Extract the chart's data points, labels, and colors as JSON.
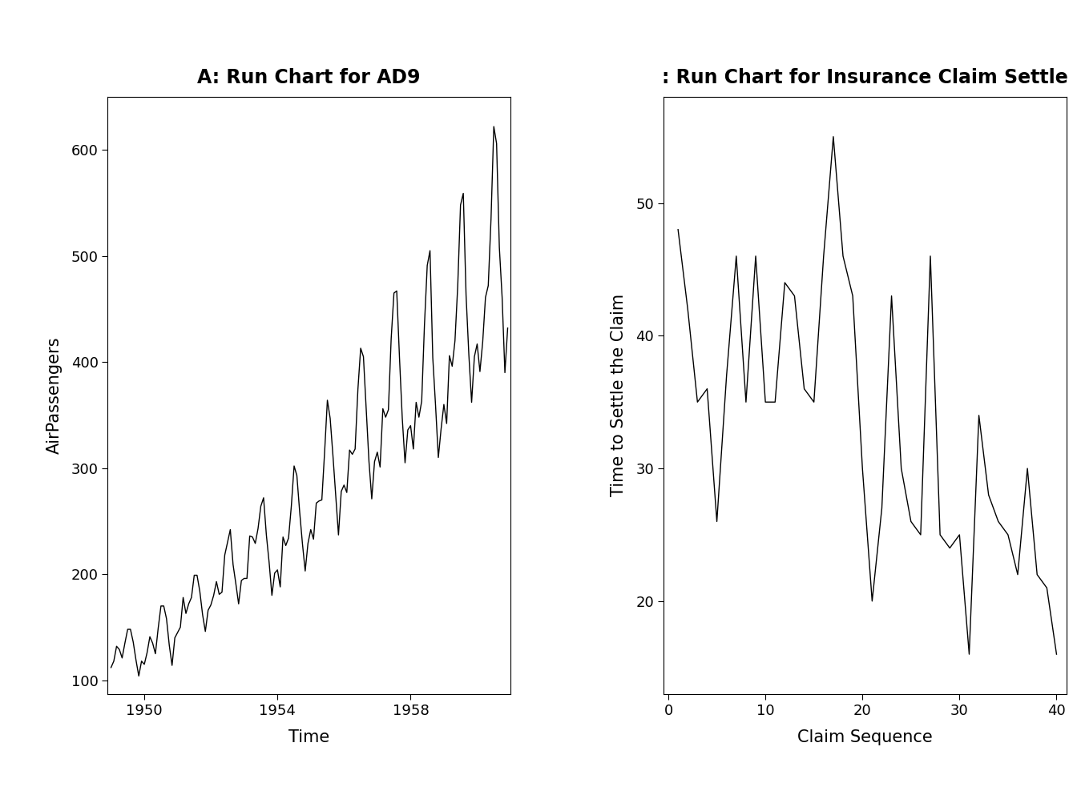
{
  "title_left": "A: Run Chart for AD9",
  "title_right": ": Run Chart for Insurance Claim Settle",
  "left": {
    "xlabel": "Time",
    "ylabel": "AirPassengers",
    "xlim": [
      1948.9,
      1961.0
    ],
    "ylim": [
      87,
      650
    ],
    "yticks": [
      100,
      200,
      300,
      400,
      500,
      600
    ],
    "xticks": [
      1950,
      1954,
      1958
    ],
    "data": [
      112,
      118,
      132,
      129,
      121,
      135,
      148,
      148,
      136,
      119,
      104,
      118,
      115,
      126,
      141,
      135,
      125,
      149,
      170,
      170,
      158,
      133,
      114,
      140,
      145,
      150,
      178,
      163,
      172,
      178,
      199,
      199,
      184,
      162,
      146,
      166,
      171,
      180,
      193,
      181,
      183,
      218,
      230,
      242,
      209,
      191,
      172,
      194,
      196,
      196,
      236,
      235,
      229,
      243,
      264,
      272,
      237,
      211,
      180,
      201,
      204,
      188,
      235,
      227,
      234,
      264,
      302,
      293,
      259,
      229,
      203,
      229,
      242,
      233,
      267,
      269,
      270,
      315,
      364,
      347,
      312,
      274,
      237,
      278,
      284,
      277,
      317,
      313,
      318,
      374,
      413,
      405,
      355,
      306,
      271,
      306,
      315,
      301,
      356,
      348,
      355,
      422,
      465,
      467,
      404,
      347,
      305,
      336,
      340,
      318,
      362,
      348,
      363,
      435,
      491,
      505,
      404,
      359,
      310,
      337,
      360,
      342,
      406,
      396,
      420,
      472,
      548,
      559,
      463,
      407,
      362,
      405,
      417,
      391,
      419,
      461,
      472,
      535,
      622,
      606,
      508,
      461,
      390,
      432
    ]
  },
  "right": {
    "xlabel": "Claim Sequence",
    "ylabel": "Time to Settle the Claim",
    "xlim": [
      -0.5,
      41.0
    ],
    "ylim": [
      13,
      58
    ],
    "yticks": [
      20,
      30,
      40,
      50
    ],
    "xticks": [
      0,
      10,
      20,
      30,
      40
    ],
    "x": [
      1,
      2,
      3,
      4,
      5,
      6,
      7,
      8,
      9,
      10,
      11,
      12,
      13,
      14,
      15,
      16,
      17,
      18,
      19,
      20,
      21,
      22,
      23,
      24,
      25,
      26,
      27,
      28,
      29,
      30,
      31,
      32,
      33,
      34,
      35,
      36,
      37,
      38,
      39,
      40
    ],
    "y": [
      48,
      42,
      35,
      36,
      26,
      37,
      46,
      35,
      46,
      35,
      35,
      44,
      43,
      36,
      35,
      46,
      55,
      46,
      43,
      30,
      20,
      27,
      43,
      30,
      26,
      25,
      46,
      25,
      24,
      25,
      16,
      34,
      28,
      26,
      25,
      22,
      30,
      22,
      21,
      16
    ]
  },
  "line_color": "#000000",
  "background_color": "#ffffff",
  "title_fontsize": 17,
  "axis_label_fontsize": 15,
  "tick_fontsize": 13
}
